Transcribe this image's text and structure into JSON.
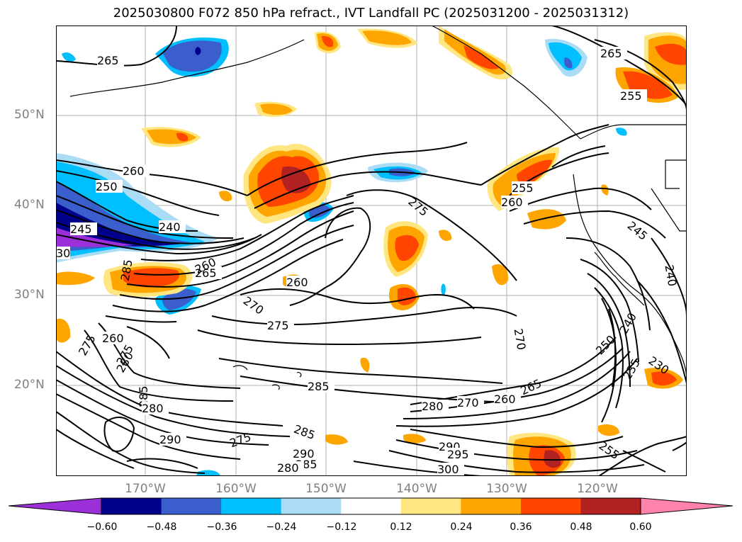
{
  "title": "2025030800 F072 850 hPa refract., IVT Landfall PC (2025031200 - 2025031312)",
  "lat_labels": [
    "50°N",
    "40°N",
    "30°N",
    "20°N"
  ],
  "lon_labels": [
    "170°W",
    "160°W",
    "150°W",
    "140°W",
    "130°W",
    "120°W"
  ],
  "colorbar": {
    "ticks": [
      "−0.60",
      "−0.48",
      "−0.36",
      "−0.24",
      "−0.12",
      "0.12",
      "0.24",
      "0.36",
      "0.48",
      "0.60"
    ],
    "colors": [
      "#9b30d9",
      "#00008b",
      "#3a5fcd",
      "#00bfff",
      "#aadcf5",
      "#ffffff",
      "#ffe680",
      "#ffa500",
      "#ff4500",
      "#b22222",
      "#ff82ab"
    ]
  },
  "contour_labels": [
    "265",
    "265",
    "255",
    "260",
    "250",
    "240",
    "245",
    "30",
    "285",
    "275",
    "265",
    "260",
    "255",
    "260",
    "275",
    "245",
    "240",
    "270",
    "275",
    "260",
    "270",
    "260",
    "275",
    "280",
    "285",
    "285",
    "280",
    "290",
    "275",
    "285",
    "290",
    "285",
    "280",
    "280",
    "270",
    "260",
    "265",
    "250",
    "240",
    "235",
    "230",
    "255",
    "290",
    "295",
    "300",
    "275",
    "285",
    "265",
    "270"
  ]
}
